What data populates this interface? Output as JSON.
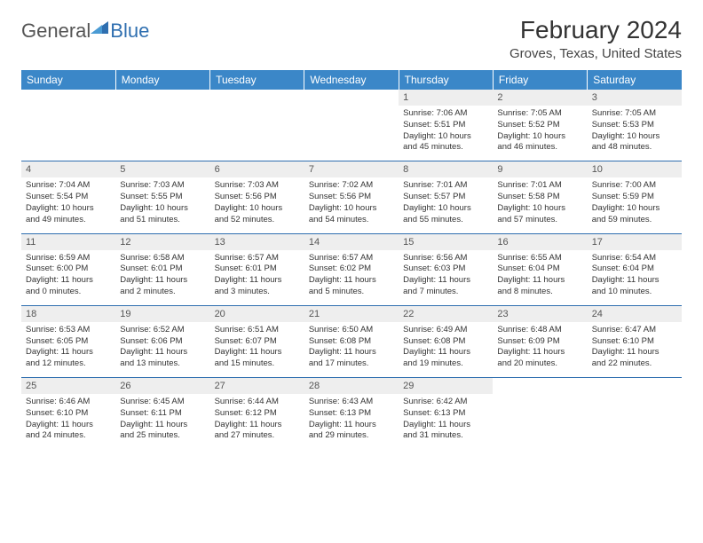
{
  "logo": {
    "general": "General",
    "blue": "Blue"
  },
  "title": "February 2024",
  "location": "Groves, Texas, United States",
  "colors": {
    "header_bg": "#3b87c8",
    "header_text": "#ffffff",
    "border": "#2f6fb0",
    "day_bg": "#eeeeee",
    "text": "#333333",
    "logo_gray": "#555555",
    "logo_blue": "#2f6fb0"
  },
  "weekdays": [
    "Sunday",
    "Monday",
    "Tuesday",
    "Wednesday",
    "Thursday",
    "Friday",
    "Saturday"
  ],
  "rows": [
    [
      null,
      null,
      null,
      null,
      {
        "n": "1",
        "sunrise": "7:06 AM",
        "sunset": "5:51 PM",
        "dlh": "10",
        "dlm": "45"
      },
      {
        "n": "2",
        "sunrise": "7:05 AM",
        "sunset": "5:52 PM",
        "dlh": "10",
        "dlm": "46"
      },
      {
        "n": "3",
        "sunrise": "7:05 AM",
        "sunset": "5:53 PM",
        "dlh": "10",
        "dlm": "48"
      }
    ],
    [
      {
        "n": "4",
        "sunrise": "7:04 AM",
        "sunset": "5:54 PM",
        "dlh": "10",
        "dlm": "49"
      },
      {
        "n": "5",
        "sunrise": "7:03 AM",
        "sunset": "5:55 PM",
        "dlh": "10",
        "dlm": "51"
      },
      {
        "n": "6",
        "sunrise": "7:03 AM",
        "sunset": "5:56 PM",
        "dlh": "10",
        "dlm": "52"
      },
      {
        "n": "7",
        "sunrise": "7:02 AM",
        "sunset": "5:56 PM",
        "dlh": "10",
        "dlm": "54"
      },
      {
        "n": "8",
        "sunrise": "7:01 AM",
        "sunset": "5:57 PM",
        "dlh": "10",
        "dlm": "55"
      },
      {
        "n": "9",
        "sunrise": "7:01 AM",
        "sunset": "5:58 PM",
        "dlh": "10",
        "dlm": "57"
      },
      {
        "n": "10",
        "sunrise": "7:00 AM",
        "sunset": "5:59 PM",
        "dlh": "10",
        "dlm": "59"
      }
    ],
    [
      {
        "n": "11",
        "sunrise": "6:59 AM",
        "sunset": "6:00 PM",
        "dlh": "11",
        "dlm": "0"
      },
      {
        "n": "12",
        "sunrise": "6:58 AM",
        "sunset": "6:01 PM",
        "dlh": "11",
        "dlm": "2"
      },
      {
        "n": "13",
        "sunrise": "6:57 AM",
        "sunset": "6:01 PM",
        "dlh": "11",
        "dlm": "3"
      },
      {
        "n": "14",
        "sunrise": "6:57 AM",
        "sunset": "6:02 PM",
        "dlh": "11",
        "dlm": "5"
      },
      {
        "n": "15",
        "sunrise": "6:56 AM",
        "sunset": "6:03 PM",
        "dlh": "11",
        "dlm": "7"
      },
      {
        "n": "16",
        "sunrise": "6:55 AM",
        "sunset": "6:04 PM",
        "dlh": "11",
        "dlm": "8"
      },
      {
        "n": "17",
        "sunrise": "6:54 AM",
        "sunset": "6:04 PM",
        "dlh": "11",
        "dlm": "10"
      }
    ],
    [
      {
        "n": "18",
        "sunrise": "6:53 AM",
        "sunset": "6:05 PM",
        "dlh": "11",
        "dlm": "12"
      },
      {
        "n": "19",
        "sunrise": "6:52 AM",
        "sunset": "6:06 PM",
        "dlh": "11",
        "dlm": "13"
      },
      {
        "n": "20",
        "sunrise": "6:51 AM",
        "sunset": "6:07 PM",
        "dlh": "11",
        "dlm": "15"
      },
      {
        "n": "21",
        "sunrise": "6:50 AM",
        "sunset": "6:08 PM",
        "dlh": "11",
        "dlm": "17"
      },
      {
        "n": "22",
        "sunrise": "6:49 AM",
        "sunset": "6:08 PM",
        "dlh": "11",
        "dlm": "19"
      },
      {
        "n": "23",
        "sunrise": "6:48 AM",
        "sunset": "6:09 PM",
        "dlh": "11",
        "dlm": "20"
      },
      {
        "n": "24",
        "sunrise": "6:47 AM",
        "sunset": "6:10 PM",
        "dlh": "11",
        "dlm": "22"
      }
    ],
    [
      {
        "n": "25",
        "sunrise": "6:46 AM",
        "sunset": "6:10 PM",
        "dlh": "11",
        "dlm": "24"
      },
      {
        "n": "26",
        "sunrise": "6:45 AM",
        "sunset": "6:11 PM",
        "dlh": "11",
        "dlm": "25"
      },
      {
        "n": "27",
        "sunrise": "6:44 AM",
        "sunset": "6:12 PM",
        "dlh": "11",
        "dlm": "27"
      },
      {
        "n": "28",
        "sunrise": "6:43 AM",
        "sunset": "6:13 PM",
        "dlh": "11",
        "dlm": "29"
      },
      {
        "n": "29",
        "sunrise": "6:42 AM",
        "sunset": "6:13 PM",
        "dlh": "11",
        "dlm": "31"
      },
      null,
      null
    ]
  ]
}
